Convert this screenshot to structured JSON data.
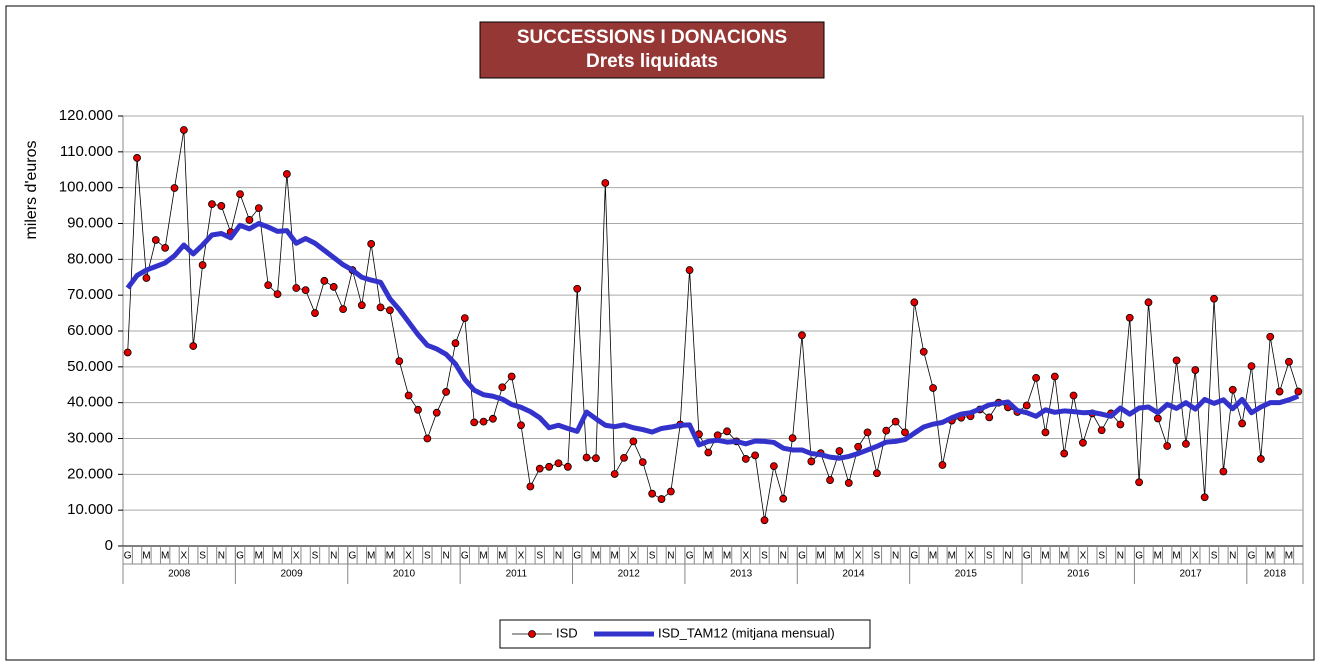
{
  "chart_data": {
    "type": "line",
    "title": "SUCCESSIONS I DONACIONS",
    "subtitle": "Drets liquidats",
    "y_label": "milers d'euros",
    "categories": [
      "G",
      null,
      "M",
      null,
      "M",
      null,
      "X",
      null,
      "S",
      null,
      "N",
      null,
      "G",
      null,
      "M",
      null,
      "M",
      null,
      "X",
      null,
      "S",
      null,
      "N",
      null,
      "G",
      null,
      "M",
      null,
      "M",
      null,
      "X",
      null,
      "S",
      null,
      "N",
      null,
      "G",
      null,
      "M",
      null,
      "M",
      null,
      "X",
      null,
      "S",
      null,
      "N",
      null,
      "G",
      null,
      "M",
      null,
      "M",
      null,
      "X",
      null,
      "S",
      null,
      "N",
      null,
      "G",
      null,
      "M",
      null,
      "M",
      null,
      "X",
      null,
      "S",
      null,
      "N",
      null,
      "G",
      null,
      "M",
      null,
      "M",
      null,
      "X",
      null,
      "S",
      null,
      "N",
      null,
      "G",
      null,
      "M",
      null,
      "M",
      null,
      "X",
      null,
      "S",
      null,
      "N",
      null,
      "G",
      null,
      "M",
      null,
      "M",
      null,
      "X",
      null,
      "S",
      null,
      "N",
      null,
      "G",
      null,
      "M",
      null,
      "M",
      null,
      "X",
      null,
      "S",
      null,
      "N",
      null,
      "G",
      null,
      "M",
      null,
      "M",
      null
    ],
    "years": [
      "2008",
      "2009",
      "2010",
      "2011",
      "2012",
      "2013",
      "2014",
      "2015",
      "2016",
      "2017",
      "2018"
    ],
    "series": [
      {
        "name": "ISD",
        "color": "#000000",
        "marker_color": "#e00000",
        "values": [
          54000,
          108300,
          74800,
          85400,
          83200,
          99900,
          116100,
          55800,
          78400,
          95400,
          94900,
          87600,
          98200,
          91000,
          94300,
          72800,
          70300,
          103800,
          72000,
          71400,
          65000,
          74000,
          72300,
          66100,
          77000,
          67200,
          84300,
          66600,
          65800,
          51600,
          42000,
          38000,
          30000,
          37200,
          43000,
          56600,
          63600,
          34500,
          34700,
          35500,
          44300,
          47300,
          33700,
          16600,
          21600,
          22100,
          23100,
          22100,
          71800,
          24700,
          24500,
          101300,
          20100,
          24600,
          29200,
          23400,
          14600,
          13100,
          15200,
          33900,
          77000,
          31200,
          26100,
          30900,
          32000,
          29200,
          24300,
          25300,
          7200,
          22300,
          13200,
          30100,
          58800,
          23600,
          25900,
          18400,
          26500,
          17600,
          27700,
          31700,
          20300,
          32200,
          34700,
          31700,
          68000,
          54200,
          44100,
          22600,
          35000,
          35800,
          36200,
          38100,
          35900,
          40000,
          38700,
          37400,
          39200,
          46900,
          31700,
          47300,
          25800,
          42000,
          28800,
          37000,
          32300,
          37000,
          33900,
          63700,
          17800,
          68000,
          35600,
          27900,
          51800,
          28500,
          49100,
          13600,
          69000,
          20800,
          43600,
          34200,
          50200,
          24300,
          58400,
          43100,
          51400,
          43100
        ]
      },
      {
        "name": "ISD_TAM12 (mitjana mensual)",
        "color": "#3333cc",
        "values": [
          72000,
          75500,
          77000,
          78000,
          79000,
          81000,
          84000,
          81500,
          84000,
          86800,
          87200,
          86000,
          89500,
          88500,
          90000,
          89000,
          87800,
          88000,
          84500,
          85800,
          84500,
          82500,
          80500,
          78500,
          77000,
          75000,
          74200,
          73600,
          69000,
          66000,
          62500,
          59000,
          56000,
          55000,
          53500,
          50800,
          46500,
          43500,
          42200,
          41800,
          41000,
          39500,
          38700,
          37500,
          35800,
          33000,
          33700,
          32800,
          32000,
          37400,
          35500,
          33700,
          33300,
          33800,
          33000,
          32500,
          31800,
          32800,
          33200,
          33700,
          33800,
          28200,
          29200,
          29500,
          29000,
          29200,
          28500,
          29300,
          29200,
          28900,
          27300,
          26800,
          26800,
          25800,
          25500,
          24800,
          24500,
          25000,
          25800,
          26800,
          27800,
          29000,
          29200,
          29700,
          31500,
          33200,
          34000,
          34500,
          35800,
          36800,
          37200,
          38200,
          39400,
          39800,
          40200,
          37800,
          37200,
          36200,
          38000,
          37300,
          37700,
          37500,
          37200,
          37300,
          36800,
          36200,
          38500,
          36800,
          38500,
          38800,
          37200,
          39500,
          38400,
          40000,
          38200,
          40900,
          39800,
          40800,
          38300,
          40900,
          37200,
          38800,
          40000,
          40000,
          40800,
          41800
        ]
      }
    ],
    "ylim": [
      0,
      120000
    ],
    "yticks": [
      0,
      {
        "value": 10000,
        "label": "10.000"
      },
      {
        "value": 20000,
        "label": "20.000"
      },
      {
        "value": 30000,
        "label": "30.000"
      },
      {
        "value": 40000,
        "label": "40.000"
      },
      {
        "value": 50000,
        "label": "50.000"
      },
      {
        "value": 60000,
        "label": "60.000"
      },
      {
        "value": 70000,
        "label": "70.000"
      },
      {
        "value": 80000,
        "label": "80.000"
      },
      {
        "value": 90000,
        "label": "90.000"
      },
      {
        "value": 100000,
        "label": "100.000"
      },
      {
        "value": 110000,
        "label": "110.000"
      },
      {
        "value": 120000,
        "label": "120.000"
      }
    ],
    "grid": true
  }
}
